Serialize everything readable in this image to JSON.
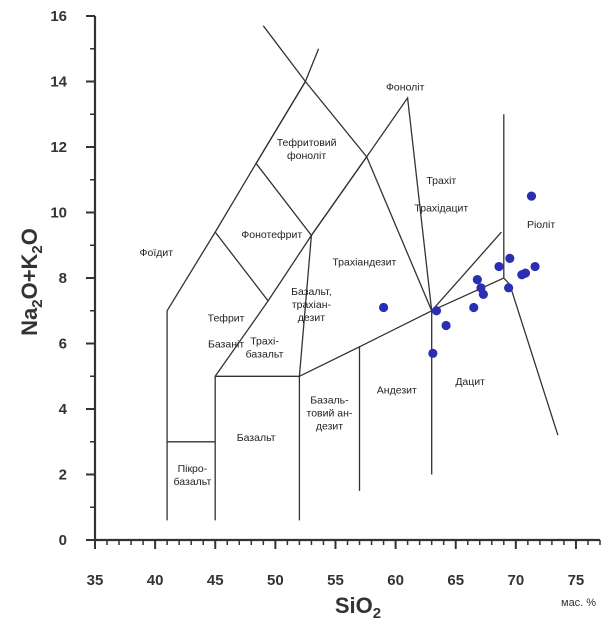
{
  "chart_data": {
    "type": "scatter",
    "title": "",
    "xlabel_main": "SiO",
    "xlabel_sub": "2",
    "xunit": "мас. %",
    "ylabel_parts": [
      "Na",
      "2",
      "O+K",
      "2",
      "O"
    ],
    "xlim": [
      35,
      77
    ],
    "ylim": [
      0,
      16
    ],
    "xticks": [
      35,
      40,
      45,
      50,
      55,
      60,
      65,
      70,
      75
    ],
    "yticks": [
      0,
      2,
      4,
      6,
      8,
      10,
      12,
      14,
      16
    ],
    "grid": false,
    "colors": {
      "axis": "#333333",
      "boundary": "#333333",
      "point": "#2a2eb0"
    },
    "boundaries": [
      [
        [
          41,
          0.6
        ],
        [
          41,
          3
        ],
        [
          41,
          7
        ],
        [
          45,
          9.4
        ],
        [
          48.4,
          11.5
        ],
        [
          52.5,
          14
        ],
        [
          57.6,
          11.7
        ],
        [
          63,
          7
        ],
        [
          63,
          2
        ]
      ],
      [
        [
          41,
          3
        ],
        [
          45,
          3
        ]
      ],
      [
        [
          45,
          0.6
        ],
        [
          45,
          5
        ],
        [
          52,
          5
        ],
        [
          52,
          0.6
        ]
      ],
      [
        [
          49.4,
          7.3
        ],
        [
          45,
          5
        ]
      ],
      [
        [
          52.5,
          14
        ],
        [
          49,
          15.7
        ]
      ],
      [
        [
          52.5,
          14
        ],
        [
          53.6,
          15
        ]
      ],
      [
        [
          45,
          9.4
        ],
        [
          49.4,
          7.3
        ],
        [
          53,
          9.3
        ],
        [
          52,
          5
        ],
        [
          57,
          5.9
        ],
        [
          57,
          1.5
        ]
      ],
      [
        [
          52.5,
          14
        ],
        [
          48.4,
          11.5
        ],
        [
          53,
          9.3
        ],
        [
          57.6,
          11.7
        ]
      ],
      [
        [
          53,
          9.3
        ],
        [
          57.6,
          11.7
        ],
        [
          61,
          13.5
        ],
        [
          63,
          7
        ]
      ],
      [
        [
          57,
          5.9
        ],
        [
          63,
          7
        ],
        [
          69,
          8
        ],
        [
          69.5,
          7.8
        ],
        [
          73.5,
          3.2
        ]
      ],
      [
        [
          69,
          8
        ],
        [
          69,
          13
        ]
      ],
      [
        [
          63,
          7
        ],
        [
          68.8,
          9.4
        ]
      ]
    ],
    "field_labels": [
      {
        "lines": [
          "Фоноліт"
        ],
        "x": 60.8,
        "y": 13.85
      },
      {
        "lines": [
          "Тефритовий",
          "фоноліт"
        ],
        "x": 52.6,
        "y": 11.95
      },
      {
        "lines": [
          "Трахіт"
        ],
        "x": 63.8,
        "y": 11.0
      },
      {
        "lines": [
          "Трахідацит"
        ],
        "x": 63.8,
        "y": 10.15
      },
      {
        "lines": [
          "Фоїдит"
        ],
        "x": 40.1,
        "y": 8.8
      },
      {
        "lines": [
          "Фонотефрит"
        ],
        "x": 49.7,
        "y": 9.35
      },
      {
        "lines": [
          "Трахіандезит"
        ],
        "x": 57.4,
        "y": 8.5
      },
      {
        "lines": [
          "Ріоліт"
        ],
        "x": 72.1,
        "y": 9.65
      },
      {
        "lines": [
          "Базальт,",
          "трахіан-",
          "дезит"
        ],
        "x": 53.0,
        "y": 7.2
      },
      {
        "lines": [
          "Тефрит"
        ],
        "x": 45.9,
        "y": 6.8
      },
      {
        "lines": [
          "Базаніт"
        ],
        "x": 45.9,
        "y": 6.0
      },
      {
        "lines": [
          "Трахі-",
          "базальт"
        ],
        "x": 49.1,
        "y": 5.9
      },
      {
        "lines": [
          "Андезит"
        ],
        "x": 60.1,
        "y": 4.6
      },
      {
        "lines": [
          "Дацит"
        ],
        "x": 66.2,
        "y": 4.85
      },
      {
        "lines": [
          "Базаль-",
          "товий ан-",
          "дезит"
        ],
        "x": 54.5,
        "y": 3.9
      },
      {
        "lines": [
          "Базальт"
        ],
        "x": 48.4,
        "y": 3.15
      },
      {
        "lines": [
          "Пікро-",
          "базальт"
        ],
        "x": 43.1,
        "y": 2.0
      }
    ],
    "series": [
      {
        "points": [
          [
            59,
            7.1
          ],
          [
            63.4,
            7.0
          ],
          [
            64.2,
            6.55
          ],
          [
            63.1,
            5.7
          ],
          [
            66.5,
            7.1
          ],
          [
            66.8,
            7.95
          ],
          [
            67.1,
            7.7
          ],
          [
            67.3,
            7.5
          ],
          [
            68.6,
            8.35
          ],
          [
            69.4,
            7.7
          ],
          [
            69.5,
            8.6
          ],
          [
            70.5,
            8.1
          ],
          [
            70.8,
            8.15
          ],
          [
            71.3,
            10.5
          ],
          [
            71.6,
            8.35
          ]
        ]
      }
    ]
  }
}
